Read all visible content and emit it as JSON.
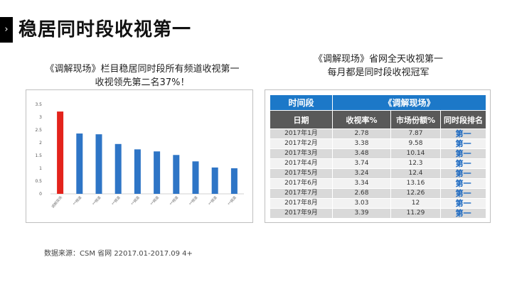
{
  "header": {
    "title": "稳居同时段收视第一"
  },
  "left_caption": {
    "line1": "《调解现场》栏目稳居同时段所有频道收视第一",
    "line2": "收视领先第二名37%！"
  },
  "right_caption": {
    "line1": "《调解现场》省网全天收视第一",
    "line2": "每月都是同时段收视冠军"
  },
  "colors": {
    "highlight_bar": "#e3231c",
    "normal_bar": "#2e75c6",
    "table_head": "#1c78c8",
    "table_subhead": "#595959",
    "rank_text": "#1565c0"
  },
  "chart_data": {
    "type": "bar",
    "categories": [
      "调解现场",
      "**频道",
      "**频道",
      "**频道",
      "**频道",
      "**频道",
      "**频道",
      "**频道",
      "**频道",
      "**频道"
    ],
    "values": [
      3.22,
      2.36,
      2.33,
      1.95,
      1.74,
      1.66,
      1.52,
      1.27,
      1.03,
      1.0
    ],
    "ylim": [
      0,
      3.5
    ],
    "yticks": [
      "0",
      "0.5",
      "1",
      "1.5",
      "2",
      "2.5",
      "3",
      "3.5"
    ],
    "highlight_index": 0,
    "grid": false,
    "title": "",
    "xlabel": "",
    "ylabel": ""
  },
  "table": {
    "period_header": "时间段",
    "program_header": "《调解现场》",
    "columns": [
      "日期",
      "收视率%",
      "市场份额%",
      "同时段排名"
    ],
    "rows": [
      [
        "2017年1月",
        "2.78",
        "7.87",
        "第一"
      ],
      [
        "2017年2月",
        "3.38",
        "9.58",
        "第一"
      ],
      [
        "2017年3月",
        "3.48",
        "10.14",
        "第一"
      ],
      [
        "2017年4月",
        "3.74",
        "12.3",
        "第一"
      ],
      [
        "2017年5月",
        "3.24",
        "12.4",
        "第一"
      ],
      [
        "2017年6月",
        "3.34",
        "13.16",
        "第一"
      ],
      [
        "2017年7月",
        "2.68",
        "12.26",
        "第一"
      ],
      [
        "2017年8月",
        "3.03",
        "12",
        "第一"
      ],
      [
        "2017年9月",
        "3.39",
        "11.29",
        "第一"
      ]
    ]
  },
  "source_note": "数据来源：CSM 省网  22017.01-2017.09    4+"
}
